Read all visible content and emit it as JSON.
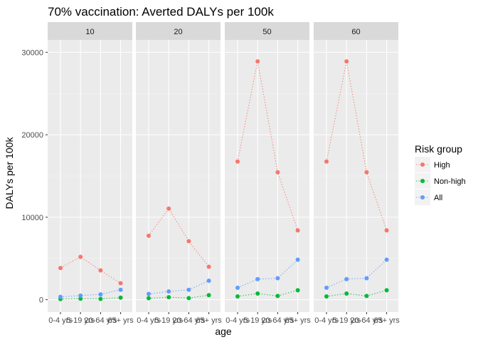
{
  "chart_data": {
    "type": "line",
    "title": "70% vaccination: Averted DALYs per 100k",
    "xlabel": "age",
    "ylabel": "DALYs per 100k",
    "categories": [
      "0-4 yrs",
      "5-19 yrs",
      "20-64 yrs",
      "65+ yrs"
    ],
    "ylim": [
      -1500,
      31500
    ],
    "yticks": [
      0,
      10000,
      20000,
      30000
    ],
    "ytick_labels": [
      "0",
      "10000",
      "20000",
      "30000"
    ],
    "grid": true,
    "line_style": "dotted",
    "legend": {
      "title": "Risk group",
      "placement": "right",
      "entries": [
        "High",
        "Non-high",
        "All"
      ]
    },
    "series_colors": {
      "High": "#F8766D",
      "Non-high": "#00BA38",
      "All": "#619CFF"
    },
    "facets": [
      {
        "label": "10",
        "series": [
          {
            "name": "High",
            "values": [
              3850,
              5200,
              3550,
              2000
            ]
          },
          {
            "name": "Non-high",
            "values": [
              80,
              120,
              100,
              250
            ]
          },
          {
            "name": "All",
            "values": [
              350,
              500,
              650,
              1200
            ]
          }
        ]
      },
      {
        "label": "20",
        "series": [
          {
            "name": "High",
            "values": [
              7750,
              11050,
              7100,
              4000
            ]
          },
          {
            "name": "Non-high",
            "values": [
              180,
              300,
              200,
              550
            ]
          },
          {
            "name": "All",
            "values": [
              700,
              1000,
              1200,
              2300
            ]
          }
        ]
      },
      {
        "label": "50",
        "series": [
          {
            "name": "High",
            "values": [
              16750,
              28900,
              15450,
              8400
            ]
          },
          {
            "name": "Non-high",
            "values": [
              400,
              750,
              450,
              1150
            ]
          },
          {
            "name": "All",
            "values": [
              1450,
              2500,
              2600,
              4850
            ]
          }
        ]
      },
      {
        "label": "60",
        "series": [
          {
            "name": "High",
            "values": [
              16750,
              28900,
              15450,
              8400
            ]
          },
          {
            "name": "Non-high",
            "values": [
              400,
              750,
              450,
              1150
            ]
          },
          {
            "name": "All",
            "values": [
              1450,
              2500,
              2600,
              4850
            ]
          }
        ]
      }
    ]
  }
}
